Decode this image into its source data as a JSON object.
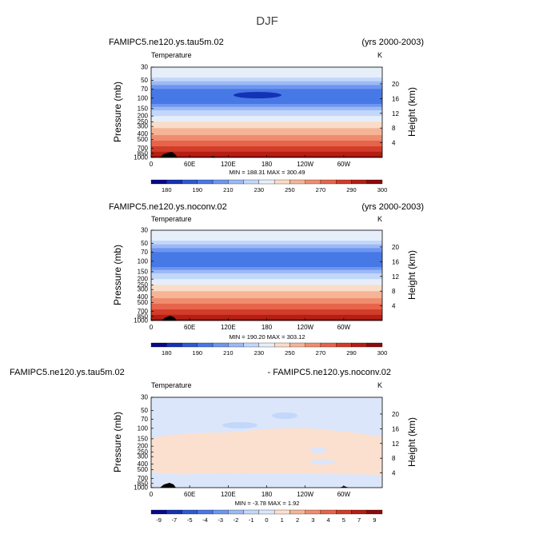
{
  "page": {
    "title": "DJF"
  },
  "chart_data": [
    {
      "type": "heatmap",
      "case_label": "FAMIPC5.ne120.ys.tau5m.02",
      "period_label": "(yrs 2000-2003)",
      "variable": "Temperature",
      "units": "K",
      "ylabel": "Pressure (mb)",
      "y2label": "Height (km)",
      "pressure_ticks": [
        "30",
        "50",
        "70",
        "100",
        "150",
        "200",
        "250",
        "300",
        "400",
        "500",
        "700",
        "850",
        "1000"
      ],
      "height_ticks": [
        "20",
        "16",
        "12",
        "8",
        "4"
      ],
      "lon_ticks": [
        "0",
        "60E",
        "120E",
        "180",
        "120W",
        "60W"
      ],
      "stats": "MIN = 188.31   MAX = 300.49",
      "colorbar_labels": [
        "180",
        "190",
        "210",
        "230",
        "250",
        "270",
        "290",
        "300"
      ],
      "min": 188.31,
      "max": 300.49
    },
    {
      "type": "heatmap",
      "case_label": "FAMIPC5.ne120.ys.noconv.02",
      "period_label": "(yrs 2000-2003)",
      "variable": "Temperature",
      "units": "K",
      "ylabel": "Pressure (mb)",
      "y2label": "Height (km)",
      "pressure_ticks": [
        "30",
        "50",
        "70",
        "100",
        "150",
        "200",
        "250",
        "300",
        "400",
        "500",
        "700",
        "850",
        "1000"
      ],
      "height_ticks": [
        "20",
        "16",
        "12",
        "8",
        "4"
      ],
      "lon_ticks": [
        "0",
        "60E",
        "120E",
        "180",
        "120W",
        "60W"
      ],
      "stats": "MIN = 190.20   MAX = 303.12",
      "colorbar_labels": [
        "180",
        "190",
        "210",
        "230",
        "250",
        "270",
        "290",
        "300"
      ],
      "min": 190.2,
      "max": 303.12
    },
    {
      "type": "heatmap",
      "case_label": "FAMIPC5.ne120.ys.tau5m.02",
      "period_label": "- FAMIPC5.ne120.ys.noconv.02",
      "variable": "Temperature",
      "units": "K",
      "ylabel": "Pressure (mb)",
      "y2label": "Height (km)",
      "pressure_ticks": [
        "30",
        "50",
        "70",
        "100",
        "150",
        "200",
        "250",
        "300",
        "400",
        "500",
        "700",
        "850",
        "1000"
      ],
      "height_ticks": [
        "20",
        "16",
        "12",
        "8",
        "4"
      ],
      "lon_ticks": [
        "0",
        "60E",
        "120E",
        "180",
        "120W",
        "60W"
      ],
      "stats": "MIN = -3.78   MAX = 1.92",
      "colorbar_labels": [
        "-9",
        "-7",
        "-5",
        "-4",
        "-3",
        "-2",
        "-1",
        "0",
        "1",
        "2",
        "3",
        "4",
        "5",
        "7",
        "9"
      ],
      "min": -3.78,
      "max": 1.92
    }
  ],
  "colors": {
    "temp_palette": [
      "#08088c",
      "#1432b4",
      "#2d5ad2",
      "#4678e6",
      "#6e96f0",
      "#9bb9f5",
      "#c3d7fa",
      "#e6eefa",
      "#fadcc8",
      "#f5b496",
      "#f08c6e",
      "#e6644b",
      "#d23c28",
      "#b41e14",
      "#8c0a0a"
    ],
    "diff_palette": [
      "#08088c",
      "#1432b4",
      "#2d5ad2",
      "#4678e6",
      "#6e96f0",
      "#9bb9f5",
      "#c3d7fa",
      "#dbe6fb",
      "#fbe0cf",
      "#f5b496",
      "#f08c6e",
      "#e6644b",
      "#d23c28",
      "#b41e14",
      "#8c0a0a"
    ]
  }
}
